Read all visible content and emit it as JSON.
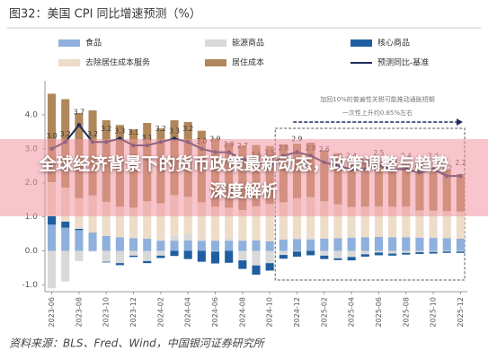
{
  "chart_data": {
    "type": "bar",
    "stacked": true,
    "title": "图32：美国 CPI 同比增速预测（%）",
    "source": "资料来源：BLS、Fred、Wind，中国银河证券研究所",
    "annotations": [
      "加回10%的普遍性关税可能推动通胀短期",
      "一次性上升约0.85%左右"
    ],
    "categories": [
      "2023-06",
      null,
      "2023-08",
      null,
      "2023-10",
      null,
      "2023-12",
      null,
      "2024-02",
      null,
      "2024-04",
      null,
      "2024-06",
      null,
      "2024-08",
      null,
      "2024-10",
      null,
      "2024-12",
      null,
      "2025-02",
      null,
      "2025-04",
      null,
      "2025-06",
      null,
      "2025-08",
      null,
      "2025-10",
      null,
      "2025-12"
    ],
    "series": [
      {
        "name": "食品",
        "type": "bar",
        "color": "#8fb0dc",
        "values": [
          0.77,
          0.68,
          0.61,
          0.52,
          0.44,
          0.4,
          0.37,
          0.36,
          0.3,
          0.3,
          0.31,
          0.29,
          0.3,
          0.3,
          0.3,
          0.31,
          0.28,
          0.33,
          0.35,
          0.33,
          0.36,
          0.37,
          0.39,
          0.4,
          0.41,
          0.4,
          0.4,
          0.39,
          0.38,
          0.37,
          0.36
        ]
      },
      {
        "name": "能源商品",
        "type": "bar",
        "color": "#d9d9d9",
        "values": [
          -1.1,
          -0.9,
          -0.3,
          -0.02,
          -0.32,
          -0.36,
          -0.14,
          -0.3,
          -0.14,
          0.14,
          0.18,
          0.04,
          -0.02,
          0.07,
          -0.28,
          -0.43,
          -0.36,
          -0.12,
          -0.02,
          0.05,
          -0.14,
          -0.22,
          -0.18,
          -0.1,
          -0.05,
          -0.08,
          -0.06,
          -0.04,
          -0.03,
          -0.02,
          -0.02
        ]
      },
      {
        "name": "核心商品",
        "type": "bar",
        "color": "#1f5fa0",
        "values": [
          0.25,
          0.18,
          0.04,
          0.01,
          -0.02,
          -0.06,
          -0.04,
          -0.06,
          -0.07,
          -0.15,
          -0.24,
          -0.32,
          -0.35,
          -0.35,
          -0.25,
          -0.27,
          -0.22,
          -0.11,
          -0.15,
          -0.13,
          -0.1,
          -0.05,
          -0.1,
          -0.07,
          -0.08,
          -0.06,
          -0.05,
          -0.05,
          -0.05,
          -0.04,
          -0.04
        ]
      },
      {
        "name": "去除居住成本服务",
        "type": "bar",
        "color": "#ecdcc8",
        "values": [
          1.0,
          1.0,
          0.9,
          1.1,
          1.0,
          0.9,
          0.9,
          1.1,
          1.1,
          1.2,
          1.1,
          1.1,
          1.0,
          0.9,
          0.9,
          1.0,
          1.1,
          1.1,
          1.2,
          1.2,
          1.1,
          1.0,
          0.9,
          0.9,
          0.9,
          0.9,
          0.9,
          0.8,
          0.8,
          0.8,
          0.8
        ]
      },
      {
        "name": "居住成本",
        "type": "bar",
        "color": "#b0875a",
        "values": [
          2.6,
          2.6,
          2.5,
          2.5,
          2.4,
          2.4,
          2.3,
          2.3,
          2.2,
          2.2,
          2.2,
          2.1,
          2.0,
          1.9,
          1.9,
          1.8,
          1.7,
          1.7,
          1.6,
          1.6,
          1.5,
          1.5,
          1.4,
          1.4,
          1.3,
          1.3,
          1.3,
          1.2,
          1.2,
          1.2,
          1.1
        ]
      },
      {
        "name": "预测同比-基准",
        "type": "line",
        "color": "#1d2b5e",
        "values": [
          3.0,
          3.2,
          3.7,
          3.2,
          3.2,
          3.3,
          3.1,
          3.1,
          3.2,
          3.3,
          3.2,
          3.0,
          2.9,
          2.9,
          2.7,
          2.6,
          2.5,
          2.8,
          2.9,
          2.8,
          2.6,
          2.5,
          2.4,
          2.4,
          2.5,
          2.4,
          2.4,
          2.3,
          2.4,
          2.2,
          2.2
        ],
        "value_labels": [
          "3.0",
          "3.2",
          "3.7",
          "3.2",
          "3.2",
          "3.3",
          "3.1",
          "3.1",
          "3.2",
          "3.3",
          "3.2",
          "3.0",
          "2.9",
          "2.9",
          "2.7",
          "2.6",
          "2.5",
          "2.8",
          "2.9",
          "2.8",
          "2.6",
          "2.5",
          "2.4",
          "2.4",
          "2.5",
          "2.4",
          "2.4",
          "2.3",
          "2.4",
          "2.2",
          "2.2"
        ]
      }
    ],
    "ylim": [
      -1.2,
      5.0
    ],
    "yticks": [
      {
        "value": -1,
        "label": "-1.0"
      },
      {
        "value": 0,
        "label": "0.0"
      },
      {
        "value": 1,
        "label": "1.0"
      },
      {
        "value": 2,
        "label": "2.0"
      },
      {
        "value": 3,
        "label": "3.0"
      },
      {
        "value": 4,
        "label": "4.0"
      }
    ],
    "grid": false,
    "legend": "top"
  },
  "banner": {
    "title": "全球经济背景下的货币政策最新动态，政策调整与趋势深度解析"
  }
}
